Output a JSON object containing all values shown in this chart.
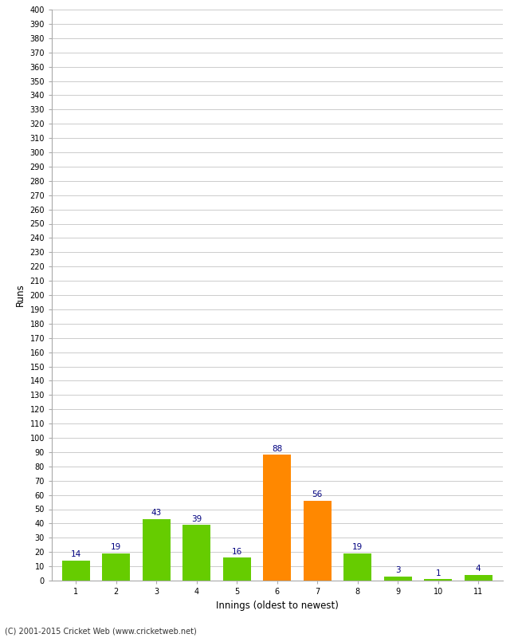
{
  "innings": [
    1,
    2,
    3,
    4,
    5,
    6,
    7,
    8,
    9,
    10,
    11
  ],
  "runs": [
    14,
    19,
    43,
    39,
    16,
    88,
    56,
    19,
    3,
    1,
    4
  ],
  "colors": [
    "#66cc00",
    "#66cc00",
    "#66cc00",
    "#66cc00",
    "#66cc00",
    "#ff8800",
    "#ff8800",
    "#66cc00",
    "#66cc00",
    "#66cc00",
    "#66cc00"
  ],
  "xlabel": "Innings (oldest to newest)",
  "ylabel": "Runs",
  "ylim": [
    0,
    400
  ],
  "ytick_step": 10,
  "background_color": "#ffffff",
  "grid_color": "#cccccc",
  "label_color": "#000080",
  "label_fontsize": 7.5,
  "tick_fontsize": 7,
  "footer": "(C) 2001-2015 Cricket Web (www.cricketweb.net)"
}
